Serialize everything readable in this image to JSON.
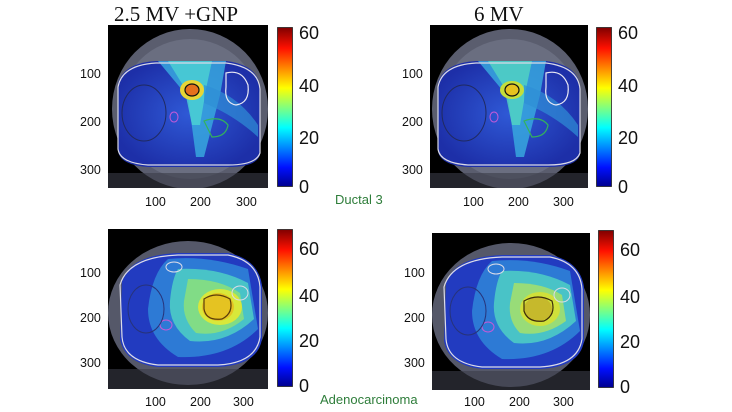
{
  "titles": {
    "left": "2.5 MV +GNP",
    "right": "6 MV"
  },
  "captions": {
    "top": "Ductal 3",
    "bottom": "Adenocarcinoma"
  },
  "panels": [
    {
      "image_name": "ductal-3-2.5mv-gnp",
      "y_ticks": [
        "100",
        "200",
        "300"
      ],
      "x_ticks": [
        "100",
        "200",
        "300"
      ],
      "colorbar_ticks": [
        "60",
        "40",
        "20",
        "0"
      ]
    },
    {
      "image_name": "ductal-3-6mv",
      "y_ticks": [
        "100",
        "200",
        "300"
      ],
      "x_ticks": [
        "100",
        "200",
        "300"
      ],
      "colorbar_ticks": [
        "60",
        "40",
        "20",
        "0"
      ]
    },
    {
      "image_name": "adenocarcinoma-2.5mv-gnp",
      "y_ticks": [
        "100",
        "200",
        "300"
      ],
      "x_ticks": [
        "100",
        "200",
        "300"
      ],
      "colorbar_ticks": [
        "60",
        "40",
        "20",
        "0"
      ]
    },
    {
      "image_name": "adenocarcinoma-6mv",
      "y_ticks": [
        "100",
        "200",
        "300"
      ],
      "x_ticks": [
        "100",
        "200",
        "300"
      ],
      "colorbar_ticks": [
        "60",
        "40",
        "20",
        "0"
      ]
    }
  ],
  "colors": {
    "caption": "#2e7d3a",
    "ct_background": "#000000",
    "dose_low": "#0b1aa8",
    "dose_high": "#9b0000"
  }
}
